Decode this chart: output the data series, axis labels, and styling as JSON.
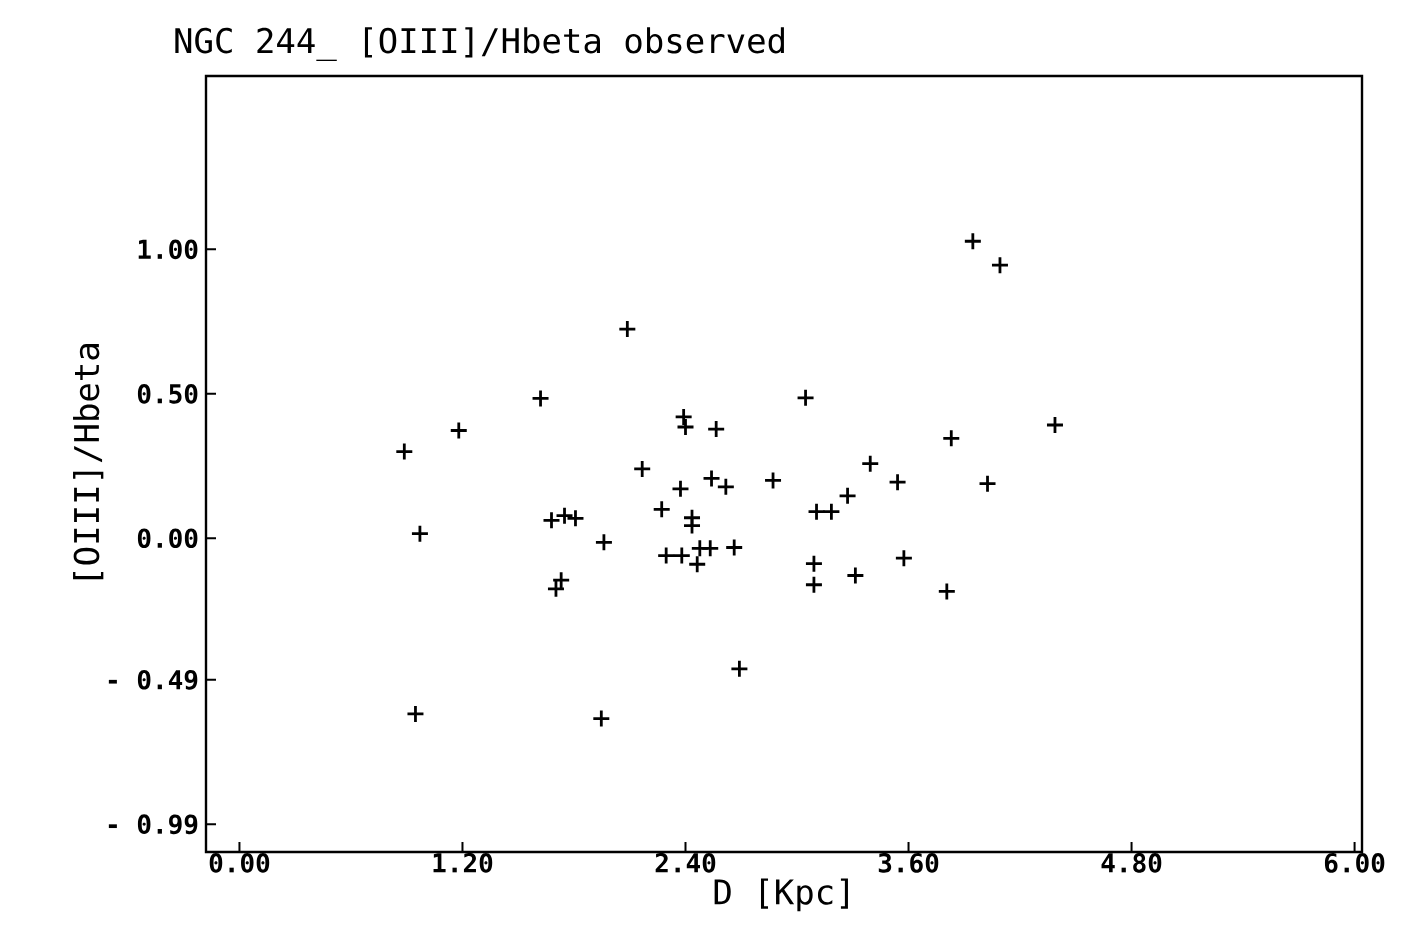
{
  "chart_data": {
    "type": "scatter",
    "title": "NGC 244_ [OIII]/Hbeta observed",
    "xlabel": "D [Kpc]",
    "ylabel": "[OIII]/Hbeta",
    "x": [
      2.087,
      1.62,
      1.18,
      0.887,
      2.39,
      2.4,
      2.565,
      2.167,
      2.54,
      2.617,
      2.871,
      2.373,
      2.272,
      2.435,
      2.435,
      1.679,
      1.749,
      1.808,
      0.971,
      1.961,
      2.296,
      2.38,
      2.463,
      2.477,
      2.533,
      2.662,
      1.731,
      1.703,
      2.69,
      0.947,
      1.947,
      3.946,
      4.092,
      3.046,
      4.388,
      3.83,
      3.394,
      3.541,
      4.025,
      3.272,
      3.105,
      3.185,
      3.091,
      3.091,
      3.314,
      3.575,
      3.806
    ],
    "values": [
      0.724,
      0.484,
      0.373,
      0.3,
      0.42,
      0.385,
      0.378,
      0.24,
      0.207,
      0.178,
      0.2,
      0.171,
      0.1,
      0.071,
      0.044,
      0.062,
      0.078,
      0.069,
      0.016,
      -0.014,
      -0.06,
      -0.06,
      -0.09,
      -0.035,
      -0.035,
      -0.032,
      -0.145,
      -0.175,
      -0.452,
      -0.608,
      -0.624,
      1.028,
      0.945,
      0.486,
      0.392,
      0.346,
      0.258,
      0.194,
      0.189,
      0.147,
      0.092,
      0.092,
      -0.088,
      -0.161,
      -0.129,
      -0.069,
      -0.184
    ],
    "color": "#000000",
    "marker": "cross",
    "xlim": [
      -0.18,
      6.04
    ],
    "ylim": [
      -1.086,
      1.6
    ],
    "xticks": [
      {
        "value": 0,
        "label": "0.00"
      },
      {
        "value": 1.2,
        "label": "1.20"
      },
      {
        "value": 2.4,
        "label": "2.40"
      },
      {
        "value": 3.6,
        "label": "3.60"
      },
      {
        "value": 4.8,
        "label": "4.80"
      },
      {
        "value": 6.0,
        "label": "6.00"
      }
    ],
    "yticks": [
      {
        "value": -0.99,
        "label": "- 0.99"
      },
      {
        "value": -0.49,
        "label": "- 0.49"
      },
      {
        "value": 0,
        "label": "0.00"
      },
      {
        "value": 0.5,
        "label": "0.50"
      },
      {
        "value": 1.0,
        "label": "1.00"
      }
    ]
  }
}
